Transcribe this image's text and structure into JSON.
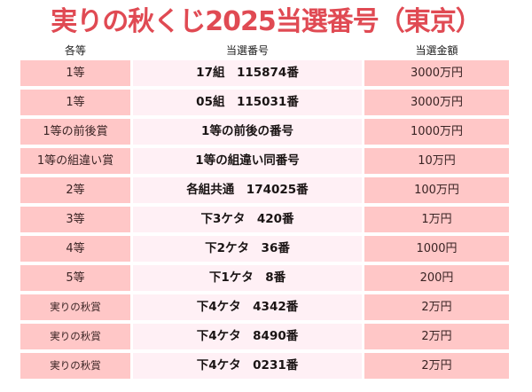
{
  "title": "実りの秋くじ2025当選番号（東京）",
  "headers": {
    "grade": "各等",
    "number": "当選番号",
    "amount": "当選金額"
  },
  "rows": [
    {
      "grade": "1等",
      "number": "17組　115874番",
      "amount": "3000万円"
    },
    {
      "grade": "1等",
      "number": "05組　115031番",
      "amount": "3000万円"
    },
    {
      "grade": "1等の前後賞",
      "number": "1等の前後の番号",
      "amount": "1000万円"
    },
    {
      "grade": "1等の組違い賞",
      "number": "1等の組違い同番号",
      "amount": "10万円"
    },
    {
      "grade": "2等",
      "number": "各組共通　174025番",
      "amount": "100万円"
    },
    {
      "grade": "3等",
      "number": "下3ケタ　420番",
      "amount": "1万円"
    },
    {
      "grade": "4等",
      "number": "下2ケタ　36番",
      "amount": "1000円"
    },
    {
      "grade": "5等",
      "number": "下1ケタ　8番",
      "amount": "200円"
    },
    {
      "grade": "実りの秋賞",
      "number": "下4ケタ　4342番",
      "amount": "2万円"
    },
    {
      "grade": "実りの秋賞",
      "number": "下4ケタ　8490番",
      "amount": "2万円"
    },
    {
      "grade": "実りの秋賞",
      "number": "下4ケタ　0231番",
      "amount": "2万円"
    }
  ],
  "colors": {
    "title": "#e04a53",
    "side_cell": "#ffc7c7",
    "middle_cell": "#fff0f5"
  }
}
